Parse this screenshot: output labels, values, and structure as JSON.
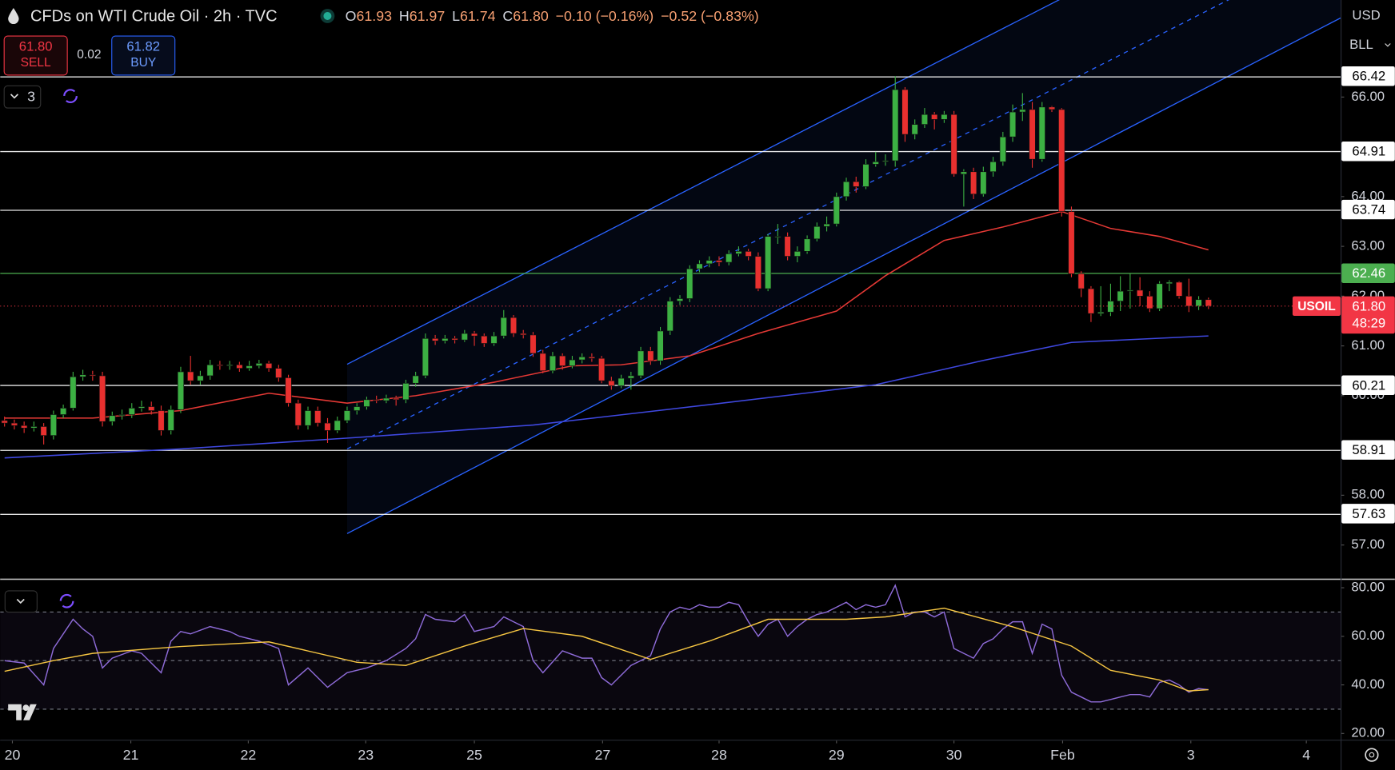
{
  "header": {
    "title": "CFDs on WTI Crude Oil · 2h · TVC",
    "ohlc": [
      {
        "label": "O",
        "value": "61.93"
      },
      {
        "label": "H",
        "value": "61.97"
      },
      {
        "label": "L",
        "value": "61.74"
      },
      {
        "label": "C",
        "value": "61.80"
      }
    ],
    "change": "−0.10 (−0.16%)",
    "change2": "−0.52 (−0.83%)"
  },
  "trade": {
    "sell_price": "61.80",
    "sell_label": "SELL",
    "spread": "0.02",
    "buy_price": "61.82",
    "buy_label": "BUY"
  },
  "indicators_count": "3",
  "currency": "USD",
  "unit": "BLL",
  "chart_data": [
    {
      "type": "candlestick",
      "up_color": "#3cb043",
      "down_color": "#e8302f",
      "ohlc": [
        [
          59.5,
          59.58,
          59.38,
          59.45
        ],
        [
          59.45,
          59.52,
          59.32,
          59.4
        ],
        [
          59.4,
          59.48,
          59.25,
          59.35
        ],
        [
          59.35,
          59.48,
          59.28,
          59.38
        ],
        [
          59.38,
          59.45,
          59.02,
          59.2
        ],
        [
          59.2,
          59.7,
          59.12,
          59.62
        ],
        [
          59.62,
          59.82,
          59.55,
          59.75
        ],
        [
          59.75,
          60.48,
          59.7,
          60.38
        ],
        [
          60.38,
          60.52,
          60.3,
          60.42
        ],
        [
          60.42,
          60.5,
          60.3,
          60.4
        ],
        [
          60.4,
          60.48,
          59.38,
          59.48
        ],
        [
          59.48,
          59.68,
          59.4,
          59.6
        ],
        [
          59.6,
          59.72,
          59.52,
          59.62
        ],
        [
          59.62,
          59.85,
          59.55,
          59.75
        ],
        [
          59.75,
          59.9,
          59.68,
          59.78
        ],
        [
          59.78,
          59.88,
          59.62,
          59.7
        ],
        [
          59.7,
          59.8,
          59.2,
          59.3
        ],
        [
          59.3,
          59.8,
          59.22,
          59.72
        ],
        [
          59.72,
          60.58,
          59.65,
          60.48
        ],
        [
          60.48,
          60.8,
          60.22,
          60.3
        ],
        [
          60.3,
          60.5,
          60.22,
          60.4
        ],
        [
          60.4,
          60.72,
          60.32,
          60.62
        ],
        [
          60.62,
          60.7,
          60.52,
          60.6
        ],
        [
          60.6,
          60.7,
          60.52,
          60.62
        ],
        [
          60.62,
          60.68,
          60.48,
          60.55
        ],
        [
          60.55,
          60.7,
          60.5,
          60.6
        ],
        [
          60.6,
          60.72,
          60.55,
          60.65
        ],
        [
          60.65,
          60.7,
          60.48,
          60.55
        ],
        [
          60.55,
          60.62,
          60.28,
          60.36
        ],
        [
          60.36,
          60.42,
          59.78,
          59.85
        ],
        [
          59.85,
          59.92,
          59.32,
          59.4
        ],
        [
          59.4,
          59.78,
          59.32,
          59.7
        ],
        [
          59.7,
          59.78,
          59.38,
          59.45
        ],
        [
          59.45,
          59.55,
          59.05,
          59.3
        ],
        [
          59.3,
          59.58,
          59.25,
          59.5
        ],
        [
          59.5,
          59.78,
          59.45,
          59.7
        ],
        [
          59.7,
          59.85,
          59.62,
          59.78
        ],
        [
          59.78,
          59.98,
          59.72,
          59.92
        ],
        [
          59.92,
          60.0,
          59.85,
          59.9
        ],
        [
          59.9,
          60.02,
          59.85,
          59.95
        ],
        [
          59.95,
          60.0,
          59.8,
          59.92
        ],
        [
          59.92,
          60.32,
          59.85,
          60.25
        ],
        [
          60.25,
          60.48,
          60.18,
          60.4
        ],
        [
          60.4,
          61.25,
          60.35,
          61.15
        ],
        [
          61.15,
          61.22,
          61.02,
          61.1
        ],
        [
          61.1,
          61.22,
          61.05,
          61.15
        ],
        [
          61.15,
          61.2,
          61.05,
          61.12
        ],
        [
          61.12,
          61.32,
          61.08,
          61.25
        ],
        [
          61.25,
          61.3,
          61.0,
          61.2
        ],
        [
          61.2,
          61.25,
          60.98,
          61.05
        ],
        [
          61.05,
          61.28,
          61.0,
          61.2
        ],
        [
          61.2,
          61.72,
          61.15,
          61.57
        ],
        [
          61.57,
          61.62,
          61.18,
          61.25
        ],
        [
          61.25,
          61.32,
          61.15,
          61.22
        ],
        [
          61.22,
          61.28,
          60.78,
          60.85
        ],
        [
          60.85,
          60.92,
          60.45,
          60.5
        ],
        [
          60.5,
          60.88,
          60.45,
          60.8
        ],
        [
          60.8,
          60.85,
          60.52,
          60.6
        ],
        [
          60.6,
          60.8,
          60.55,
          60.72
        ],
        [
          60.72,
          60.85,
          60.65,
          60.78
        ],
        [
          60.78,
          60.85,
          60.68,
          60.75
        ],
        [
          60.75,
          60.8,
          60.25,
          60.3
        ],
        [
          60.3,
          60.38,
          60.12,
          60.2
        ],
        [
          60.2,
          60.42,
          60.15,
          60.35
        ],
        [
          60.35,
          60.48,
          60.12,
          60.4
        ],
        [
          60.4,
          60.98,
          60.35,
          60.9
        ],
        [
          60.9,
          60.98,
          60.62,
          60.7
        ],
        [
          60.7,
          61.38,
          60.62,
          61.3
        ],
        [
          61.3,
          61.98,
          61.22,
          61.9
        ],
        [
          61.9,
          62.02,
          61.82,
          61.95
        ],
        [
          61.95,
          62.62,
          61.88,
          62.55
        ],
        [
          62.55,
          62.72,
          62.48,
          62.65
        ],
        [
          62.65,
          62.8,
          62.58,
          62.72
        ],
        [
          62.72,
          62.8,
          62.6,
          62.68
        ],
        [
          62.68,
          62.92,
          62.62,
          62.85
        ],
        [
          62.85,
          63.0,
          62.8,
          62.9
        ],
        [
          62.9,
          62.95,
          62.72,
          62.8
        ],
        [
          62.8,
          62.88,
          62.1,
          62.15
        ],
        [
          62.15,
          63.25,
          62.1,
          63.2
        ],
        [
          63.2,
          63.45,
          63.05,
          63.2
        ],
        [
          63.2,
          63.28,
          62.72,
          62.8
        ],
        [
          62.8,
          63.0,
          62.68,
          62.9
        ],
        [
          62.9,
          63.22,
          62.85,
          63.15
        ],
        [
          63.15,
          63.48,
          63.1,
          63.4
        ],
        [
          63.4,
          63.6,
          63.3,
          63.45
        ],
        [
          63.45,
          64.08,
          63.4,
          64.0
        ],
        [
          64.0,
          64.38,
          63.92,
          64.3
        ],
        [
          64.3,
          64.4,
          64.08,
          64.2
        ],
        [
          64.2,
          64.75,
          64.15,
          64.65
        ],
        [
          64.65,
          64.9,
          64.6,
          64.7
        ],
        [
          64.7,
          64.85,
          64.62,
          64.72
        ],
        [
          64.72,
          66.42,
          64.6,
          66.15
        ],
        [
          66.15,
          66.2,
          65.1,
          65.25
        ],
        [
          65.25,
          65.55,
          65.15,
          65.45
        ],
        [
          65.45,
          65.78,
          65.38,
          65.65
        ],
        [
          65.65,
          65.7,
          65.35,
          65.55
        ],
        [
          65.55,
          65.72,
          65.48,
          65.65
        ],
        [
          65.65,
          65.72,
          64.4,
          64.45
        ],
        [
          64.45,
          64.55,
          63.8,
          64.5
        ],
        [
          64.5,
          64.58,
          63.95,
          64.05
        ],
        [
          64.05,
          64.6,
          64.0,
          64.5
        ],
        [
          64.5,
          64.8,
          64.4,
          64.7
        ],
        [
          64.7,
          65.3,
          64.62,
          65.2
        ],
        [
          65.2,
          65.85,
          65.1,
          65.7
        ],
        [
          65.7,
          66.08,
          65.52,
          65.75
        ],
        [
          65.75,
          65.9,
          64.58,
          64.75
        ],
        [
          64.75,
          65.9,
          64.7,
          65.8
        ],
        [
          65.8,
          65.82,
          65.7,
          65.75
        ],
        [
          65.75,
          65.78,
          63.6,
          63.7
        ],
        [
          63.7,
          63.8,
          62.38,
          62.45
        ],
        [
          62.45,
          62.5,
          61.98,
          62.15
        ],
        [
          62.15,
          62.2,
          61.48,
          61.65
        ],
        [
          61.65,
          62.2,
          61.6,
          61.68
        ],
        [
          61.68,
          62.25,
          61.6,
          61.9
        ],
        [
          61.9,
          62.4,
          61.7,
          62.1
        ],
        [
          62.1,
          62.45,
          61.75,
          62.12
        ],
        [
          62.12,
          62.38,
          61.8,
          62.0
        ],
        [
          62.0,
          62.1,
          61.68,
          61.75
        ],
        [
          61.75,
          62.3,
          61.7,
          62.25
        ],
        [
          62.25,
          62.32,
          62.1,
          62.28
        ],
        [
          62.28,
          62.3,
          61.95,
          62.0
        ],
        [
          62.0,
          62.35,
          61.68,
          61.8
        ],
        [
          61.8,
          62.0,
          61.72,
          61.93
        ],
        [
          61.93,
          61.97,
          61.74,
          61.8
        ]
      ],
      "ma": [
        {
          "color": "#e53935",
          "x": [
            0,
            9,
            18,
            27,
            35,
            42,
            50,
            58,
            63,
            70,
            77,
            85,
            90,
            96,
            102,
            108,
            113,
            118,
            123
          ],
          "values": [
            59.55,
            59.55,
            59.7,
            60.05,
            59.85,
            60.0,
            60.27,
            60.6,
            60.62,
            60.8,
            61.25,
            61.7,
            62.41,
            63.12,
            63.39,
            63.7,
            63.36,
            63.2,
            62.93
          ]
        },
        {
          "color": "#3f48e0",
          "x": [
            0,
            18,
            36,
            54,
            72,
            89,
            100,
            109,
            123
          ],
          "values": [
            58.75,
            58.93,
            59.16,
            59.41,
            59.82,
            60.22,
            60.71,
            61.07,
            61.2
          ]
        }
      ],
      "channel": {
        "color": "#2962ff",
        "x": [
          35,
          136.5
        ],
        "upper": [
          60.63,
          70.85
        ],
        "middle": [
          58.93,
          69.1
        ],
        "lower": [
          57.23,
          67.59
        ]
      },
      "levels": [
        66.42,
        64.91,
        63.74,
        62.46,
        60.21,
        58.91,
        57.63
      ],
      "level_colors": [
        "#ffffff",
        "#ffffff",
        "#ffffff",
        "#4caf50",
        "#ffffff",
        "#ffffff",
        "#ffffff"
      ],
      "last": {
        "value": 61.8,
        "label": "61.80"
      },
      "last_name": "USOIL",
      "countdown": "48:29",
      "last_color": "#f23645",
      "xlim": [
        -0.45,
        136.5
      ],
      "ylim": [
        56.32,
        67.95
      ],
      "yticks": [
        {
          "value": 57,
          "label": "57.00"
        },
        {
          "value": 58,
          "label": "58.00"
        },
        {
          "value": 60,
          "label": "60.00"
        },
        {
          "value": 61,
          "label": "61.00"
        },
        {
          "value": 62,
          "label": "62.00"
        },
        {
          "value": 63,
          "label": "63.00"
        },
        {
          "value": 64,
          "label": "64.00"
        },
        {
          "value": 66,
          "label": "66.00"
        }
      ],
      "xticks": [
        {
          "value": 0.8,
          "label": "20"
        },
        {
          "value": 12.9,
          "label": "21"
        },
        {
          "value": 24.9,
          "label": "22"
        },
        {
          "value": 36.9,
          "label": "23"
        },
        {
          "value": 48,
          "label": "25"
        },
        {
          "value": 61.1,
          "label": "27"
        },
        {
          "value": 73,
          "label": "28"
        },
        {
          "value": 85,
          "label": "29"
        },
        {
          "value": 97,
          "label": "30"
        },
        {
          "value": 108.1,
          "label": "Feb"
        },
        {
          "value": 121.2,
          "label": "3"
        },
        {
          "value": 133,
          "label": "4"
        }
      ]
    },
    {
      "type": "line",
      "xlim": [
        -0.45,
        136.5
      ],
      "ylim": [
        17.4,
        83.3
      ],
      "yticks": [
        {
          "value": 20,
          "label": "20.00"
        },
        {
          "value": 40,
          "label": "40.00"
        },
        {
          "value": 60,
          "label": "60.00"
        },
        {
          "value": 80,
          "label": "80.00"
        }
      ],
      "bands": [
        70,
        50,
        30
      ],
      "series": [
        {
          "color": "#8e6bd8",
          "x": [
            0,
            2,
            4,
            5,
            7,
            8,
            9,
            10,
            11,
            13,
            14,
            16,
            17,
            18,
            19,
            21,
            23,
            24,
            26,
            28,
            29,
            31,
            33,
            35,
            37,
            39,
            41,
            42,
            43,
            44,
            46,
            47,
            48,
            50,
            51,
            52,
            53,
            54,
            55,
            57,
            59,
            60,
            61,
            62,
            64,
            66,
            67,
            68,
            69,
            70,
            71,
            72,
            73,
            74,
            75,
            76,
            77,
            78,
            79,
            80,
            81,
            82,
            83,
            84,
            85,
            86,
            87,
            88,
            89,
            90,
            91,
            92,
            93,
            94,
            95,
            96,
            97,
            98,
            99,
            100,
            101,
            102,
            103,
            104,
            105,
            106,
            107,
            108,
            109,
            110,
            111,
            112,
            113,
            114,
            115,
            116,
            117,
            118,
            119,
            120,
            121,
            122,
            123
          ],
          "values": [
            50,
            49,
            40,
            55,
            67,
            63,
            60,
            47,
            51,
            54,
            53,
            45,
            58,
            62,
            61,
            64,
            62,
            60,
            58,
            55,
            40,
            47,
            39,
            45,
            47,
            50,
            55,
            59,
            69,
            67,
            66,
            69,
            62,
            64,
            68,
            66,
            64,
            50,
            45,
            54,
            51,
            51,
            43,
            40,
            48,
            52,
            63,
            70,
            72,
            71,
            73,
            72,
            72,
            74,
            73,
            66,
            60,
            65,
            67,
            60,
            64,
            67,
            69,
            70,
            72,
            74,
            71,
            73,
            72,
            73,
            81,
            68,
            70,
            70,
            68,
            70,
            55,
            53,
            51,
            57,
            59,
            63,
            66,
            66,
            53,
            65,
            63,
            44,
            37,
            35,
            33,
            33,
            34,
            35,
            36,
            36,
            35,
            41,
            42,
            40,
            37,
            38.5,
            38
          ]
        },
        {
          "color": "#f5c542",
          "x": [
            0,
            5,
            9,
            18,
            27,
            36,
            41,
            47,
            53,
            59,
            66,
            72,
            78,
            86,
            90,
            96,
            103,
            109,
            113,
            118,
            121,
            123
          ],
          "values": [
            45.6,
            50,
            53,
            55.8,
            57.7,
            49.3,
            48,
            56,
            63.2,
            60,
            50.5,
            58,
            67,
            67,
            68,
            71.6,
            63.9,
            56,
            46,
            42,
            37.5,
            38
          ]
        }
      ]
    }
  ]
}
